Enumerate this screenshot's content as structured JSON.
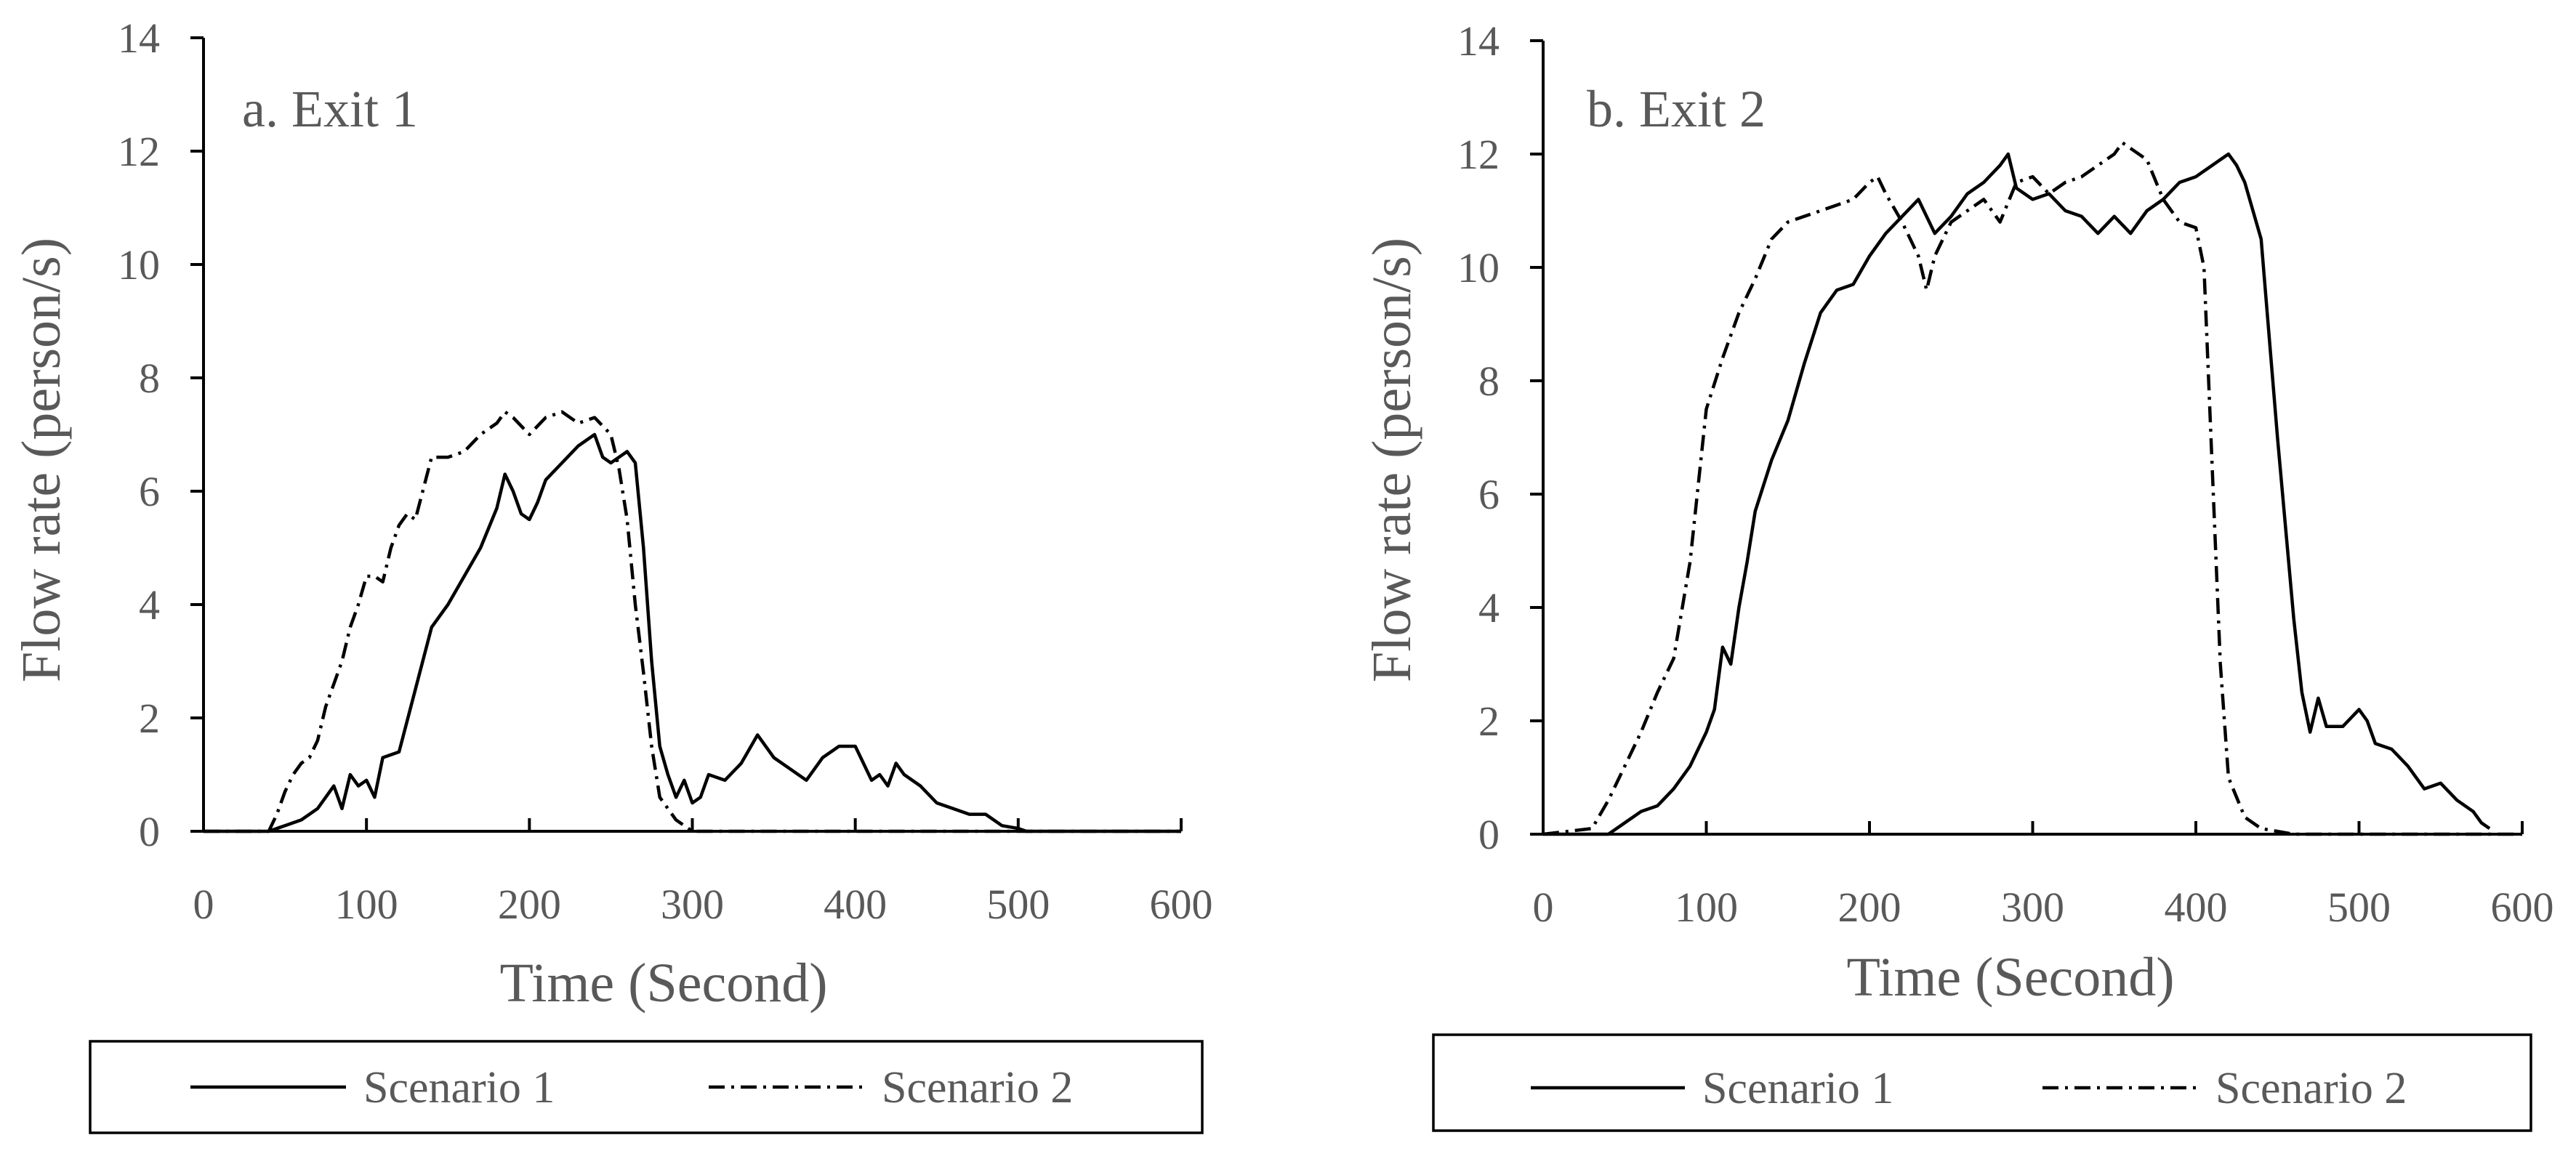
{
  "chart_data": [
    {
      "type": "line",
      "title": "a. Exit 1",
      "xlabel": "Time (Second)",
      "ylabel": "Flow rate (person/s)",
      "xlim": [
        0,
        600
      ],
      "ylim": [
        0,
        14
      ],
      "xticks": [
        0,
        100,
        200,
        300,
        400,
        500,
        600
      ],
      "yticks": [
        0,
        2,
        4,
        6,
        8,
        10,
        12,
        14
      ],
      "legend_position": "bottom",
      "series": [
        {
          "name": "Scenario 1",
          "style": "solid",
          "x": [
            0,
            40,
            50,
            60,
            70,
            80,
            85,
            90,
            95,
            100,
            105,
            110,
            120,
            130,
            140,
            150,
            160,
            170,
            180,
            185,
            190,
            195,
            200,
            205,
            210,
            220,
            230,
            240,
            245,
            250,
            255,
            260,
            265,
            270,
            275,
            280,
            285,
            290,
            295,
            300,
            305,
            310,
            320,
            330,
            340,
            350,
            360,
            370,
            380,
            390,
            400,
            405,
            410,
            415,
            420,
            425,
            430,
            440,
            450,
            460,
            470,
            480,
            490,
            500,
            505,
            510,
            600
          ],
          "y": [
            0,
            0,
            0.1,
            0.2,
            0.4,
            0.8,
            0.4,
            1.0,
            0.8,
            0.9,
            0.6,
            1.3,
            1.4,
            2.5,
            3.6,
            4.0,
            4.5,
            5.0,
            5.7,
            6.3,
            6.0,
            5.6,
            5.5,
            5.8,
            6.2,
            6.5,
            6.8,
            7.0,
            6.6,
            6.5,
            6.6,
            6.7,
            6.5,
            5.0,
            3.0,
            1.5,
            1.0,
            0.6,
            0.9,
            0.5,
            0.6,
            1.0,
            0.9,
            1.2,
            1.7,
            1.3,
            1.1,
            0.9,
            1.3,
            1.5,
            1.5,
            1.2,
            0.9,
            1.0,
            0.8,
            1.2,
            1.0,
            0.8,
            0.5,
            0.4,
            0.3,
            0.3,
            0.1,
            0.05,
            0,
            0,
            0
          ]
        },
        {
          "name": "Scenario 2",
          "style": "dash-dot",
          "x": [
            0,
            40,
            45,
            50,
            55,
            60,
            65,
            70,
            75,
            80,
            85,
            90,
            95,
            100,
            105,
            110,
            115,
            120,
            125,
            130,
            140,
            150,
            160,
            170,
            180,
            185,
            190,
            200,
            210,
            220,
            230,
            240,
            250,
            255,
            260,
            265,
            270,
            275,
            280,
            290,
            300,
            600
          ],
          "y": [
            0,
            0,
            0.3,
            0.7,
            1.0,
            1.2,
            1.3,
            1.6,
            2.2,
            2.6,
            3.0,
            3.6,
            4.0,
            4.5,
            4.5,
            4.4,
            5.0,
            5.4,
            5.6,
            5.5,
            6.6,
            6.6,
            6.7,
            7.0,
            7.2,
            7.4,
            7.3,
            7.0,
            7.3,
            7.4,
            7.2,
            7.3,
            7.0,
            6.4,
            5.5,
            4.0,
            2.8,
            1.5,
            0.6,
            0.2,
            0,
            0
          ]
        }
      ]
    },
    {
      "type": "line",
      "title": "b. Exit 2",
      "xlabel": "Time (Second)",
      "ylabel": "Flow rate (person/s)",
      "xlim": [
        0,
        600
      ],
      "ylim": [
        0,
        14
      ],
      "xticks": [
        0,
        100,
        200,
        300,
        400,
        500,
        600
      ],
      "yticks": [
        0,
        2,
        4,
        6,
        8,
        10,
        12,
        14
      ],
      "legend_position": "bottom",
      "series": [
        {
          "name": "Scenario 1",
          "style": "solid",
          "x": [
            0,
            40,
            50,
            60,
            70,
            80,
            90,
            100,
            105,
            110,
            115,
            120,
            125,
            130,
            140,
            150,
            160,
            170,
            180,
            190,
            200,
            210,
            220,
            230,
            240,
            250,
            260,
            270,
            280,
            285,
            290,
            300,
            310,
            320,
            330,
            340,
            350,
            360,
            370,
            380,
            390,
            400,
            410,
            420,
            425,
            430,
            440,
            450,
            460,
            465,
            470,
            475,
            480,
            490,
            500,
            505,
            510,
            520,
            530,
            540,
            550,
            560,
            570,
            575,
            580
          ],
          "y": [
            0,
            0,
            0.2,
            0.4,
            0.5,
            0.8,
            1.2,
            1.8,
            2.2,
            3.3,
            3.0,
            4.0,
            4.8,
            5.7,
            6.6,
            7.3,
            8.3,
            9.2,
            9.6,
            9.7,
            10.2,
            10.6,
            10.9,
            11.2,
            10.6,
            10.9,
            11.3,
            11.5,
            11.8,
            12.0,
            11.4,
            11.2,
            11.3,
            11.0,
            10.9,
            10.6,
            10.9,
            10.6,
            11.0,
            11.2,
            11.5,
            11.6,
            11.8,
            12.0,
            11.8,
            11.5,
            10.5,
            7.0,
            3.8,
            2.5,
            1.8,
            2.4,
            1.9,
            1.9,
            2.2,
            2.0,
            1.6,
            1.5,
            1.2,
            0.8,
            0.9,
            0.6,
            0.4,
            0.2,
            0.1
          ]
        },
        {
          "name": "Scenario 2",
          "style": "dash-dot",
          "x": [
            0,
            30,
            40,
            50,
            60,
            70,
            80,
            90,
            100,
            110,
            120,
            130,
            140,
            150,
            160,
            170,
            180,
            190,
            200,
            205,
            210,
            220,
            230,
            235,
            240,
            250,
            260,
            270,
            280,
            290,
            300,
            310,
            320,
            330,
            340,
            350,
            355,
            360,
            370,
            380,
            390,
            400,
            405,
            410,
            415,
            420,
            430,
            440,
            450,
            460,
            600
          ],
          "y": [
            0,
            0.1,
            0.6,
            1.2,
            1.8,
            2.5,
            3.1,
            4.8,
            7.5,
            8.4,
            9.2,
            9.8,
            10.5,
            10.8,
            10.9,
            11.0,
            11.1,
            11.2,
            11.5,
            11.6,
            11.3,
            10.8,
            10.2,
            9.6,
            10.2,
            10.8,
            11.0,
            11.2,
            10.8,
            11.5,
            11.6,
            11.3,
            11.5,
            11.6,
            11.8,
            12.0,
            12.2,
            12.1,
            11.9,
            11.2,
            10.8,
            10.7,
            10.0,
            6.5,
            3.0,
            1.0,
            0.3,
            0.1,
            0.05,
            0,
            0
          ]
        }
      ]
    }
  ]
}
